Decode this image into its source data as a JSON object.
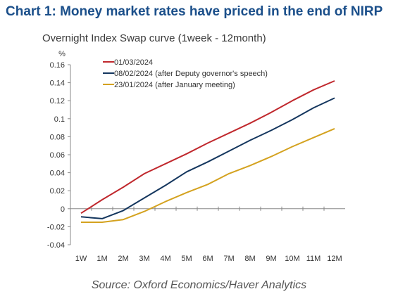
{
  "header": {
    "title": "Chart 1: Money market rates have priced in the end of NIRP",
    "source": "Source: Oxford Economics/Haver Analytics"
  },
  "chart_data": {
    "type": "line",
    "title": "Overnight Index Swap curve (1week - 12month)",
    "ylabel": "%",
    "xlabel": "",
    "categories": [
      "1W",
      "1M",
      "2M",
      "3M",
      "4M",
      "5M",
      "6M",
      "7M",
      "8M",
      "9M",
      "10M",
      "11M",
      "12M"
    ],
    "ylim": [
      -0.04,
      0.16
    ],
    "yticks": [
      -0.04,
      -0.02,
      0,
      0.02,
      0.04,
      0.06,
      0.08,
      0.1,
      0.12,
      0.14,
      0.16
    ],
    "ytick_labels": [
      "-0.04",
      "-0.02",
      "0",
      "0.02",
      "0.04",
      "0.06",
      "0.08",
      "0.1",
      "0.12",
      "0.14",
      "0.16"
    ],
    "legend_position": "top-left",
    "grid": false,
    "series": [
      {
        "name": "01/03/2024",
        "color": "#c0282d",
        "values": [
          -0.005,
          0.01,
          0.024,
          0.039,
          0.05,
          0.061,
          0.073,
          0.084,
          0.095,
          0.107,
          0.12,
          0.132,
          0.142
        ]
      },
      {
        "name": "08/02/2024 (after Deputy governor's speech)",
        "color": "#14365e",
        "values": [
          -0.009,
          -0.011,
          -0.002,
          0.012,
          0.026,
          0.041,
          0.052,
          0.064,
          0.076,
          0.087,
          0.099,
          0.112,
          0.123
        ]
      },
      {
        "name": "23/01/2024 (after January meeting)",
        "color": "#d4a21f",
        "values": [
          -0.015,
          -0.015,
          -0.012,
          -0.003,
          0.008,
          0.018,
          0.027,
          0.039,
          0.048,
          0.058,
          0.069,
          0.079,
          0.089
        ]
      }
    ]
  }
}
